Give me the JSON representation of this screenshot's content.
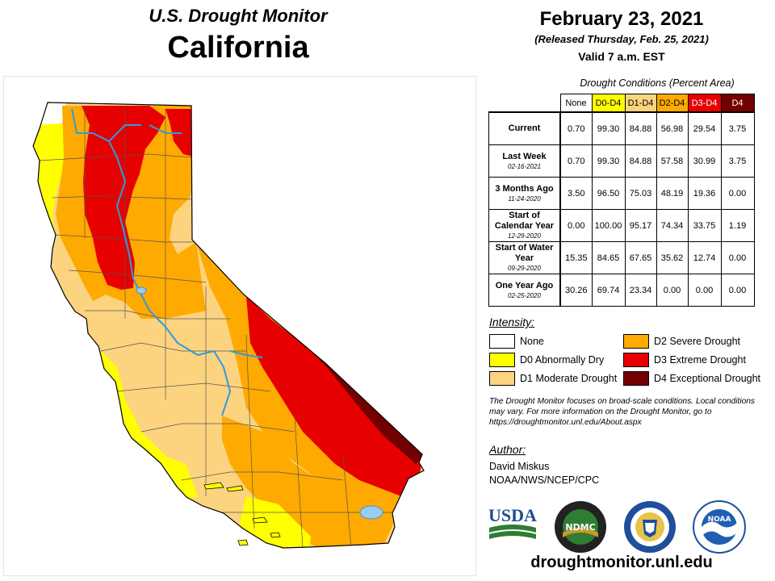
{
  "header": {
    "subtitle": "U.S. Drought Monitor",
    "state": "California"
  },
  "release": {
    "date": "February 23, 2021",
    "released": "(Released Thursday, Feb. 25, 2021)",
    "valid": "Valid 7 a.m. EST"
  },
  "conditions": {
    "title": "Drought Conditions (Percent Area)",
    "columns": [
      "None",
      "D0-D4",
      "D1-D4",
      "D2-D4",
      "D3-D4",
      "D4"
    ],
    "column_colors": [
      "#ffffff",
      "#ffff00",
      "#fcd37f",
      "#ffaa00",
      "#e60000",
      "#730000"
    ],
    "column_text_colors": [
      "#000000",
      "#000000",
      "#000000",
      "#000000",
      "#ffffff",
      "#ffffff"
    ],
    "rows": [
      {
        "label": "Current",
        "date": "",
        "values": [
          "0.70",
          "99.30",
          "84.88",
          "56.98",
          "29.54",
          "3.75"
        ]
      },
      {
        "label": "Last Week",
        "date": "02-16-2021",
        "values": [
          "0.70",
          "99.30",
          "84.88",
          "57.58",
          "30.99",
          "3.75"
        ]
      },
      {
        "label": "3 Months Ago",
        "date": "11-24-2020",
        "values": [
          "3.50",
          "96.50",
          "75.03",
          "48.19",
          "19.36",
          "0.00"
        ]
      },
      {
        "label": "Start of Calendar Year",
        "date": "12-29-2020",
        "values": [
          "0.00",
          "100.00",
          "95.17",
          "74.34",
          "33.75",
          "1.19"
        ]
      },
      {
        "label": "Start of Water Year",
        "date": "09-29-2020",
        "values": [
          "15.35",
          "84.65",
          "67.65",
          "35.62",
          "12.74",
          "0.00"
        ]
      },
      {
        "label": "One Year Ago",
        "date": "02-25-2020",
        "values": [
          "30.26",
          "69.74",
          "23.34",
          "0.00",
          "0.00",
          "0.00"
        ]
      }
    ]
  },
  "intensity": {
    "label": "Intensity:",
    "items": [
      {
        "label": "None",
        "color": "#ffffff"
      },
      {
        "label": "D0 Abnormally Dry",
        "color": "#ffff00"
      },
      {
        "label": "D1 Moderate Drought",
        "color": "#fcd37f"
      },
      {
        "label": "D2 Severe Drought",
        "color": "#ffaa00"
      },
      {
        "label": "D3 Extreme Drought",
        "color": "#e60000"
      },
      {
        "label": "D4 Exceptional Drought",
        "color": "#730000"
      }
    ]
  },
  "note": "The Drought Monitor focuses on broad-scale conditions. Local conditions may vary. For more information on the Drought Monitor, go to https://droughtmonitor.unl.edu/About.aspx",
  "author": {
    "label": "Author:",
    "name": "David Miskus",
    "org": "NOAA/NWS/NCEP/CPC"
  },
  "logos": {
    "usda": "USDA",
    "ndmc": "NDMC",
    "noaa": "NOAA"
  },
  "url": "droughtmonitor.unl.edu",
  "colors": {
    "none": "#ffffff",
    "d0": "#ffff00",
    "d1": "#fcd37f",
    "d2": "#ffaa00",
    "d3": "#e60000",
    "d4": "#730000",
    "river": "#3399dd",
    "lake": "#99ccee"
  }
}
